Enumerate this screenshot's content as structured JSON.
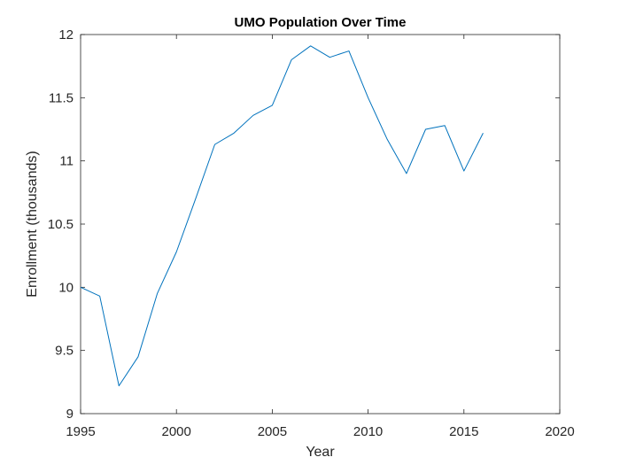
{
  "chart_data": {
    "type": "line",
    "title": "UMO Population Over Time",
    "xlabel": "Year",
    "ylabel": "Enrollment (thousands)",
    "xlim": [
      1995,
      2020
    ],
    "ylim": [
      9,
      12
    ],
    "xticks": [
      1995,
      2000,
      2005,
      2010,
      2015,
      2020
    ],
    "yticks": [
      9,
      9.5,
      10,
      10.5,
      11,
      11.5,
      12
    ],
    "xtick_labels": [
      "1995",
      "2000",
      "2005",
      "2010",
      "2015",
      "2020"
    ],
    "ytick_labels": [
      "9",
      "9.5",
      "10",
      "10.5",
      "11",
      "11.5",
      "12"
    ],
    "grid": false,
    "series": [
      {
        "color": "#0072BD",
        "x": [
          1995,
          1996,
          1997,
          1998,
          1999,
          2000,
          2001,
          2002,
          2003,
          2004,
          2005,
          2006,
          2007,
          2008,
          2009,
          2010,
          2011,
          2012,
          2013,
          2014,
          2015,
          2016
        ],
        "y": [
          10.0,
          9.93,
          9.22,
          9.45,
          9.95,
          10.28,
          10.7,
          11.13,
          11.22,
          11.36,
          11.44,
          11.8,
          11.91,
          11.82,
          11.87,
          11.5,
          11.17,
          10.9,
          11.25,
          11.28,
          10.92,
          11.22
        ]
      }
    ]
  }
}
